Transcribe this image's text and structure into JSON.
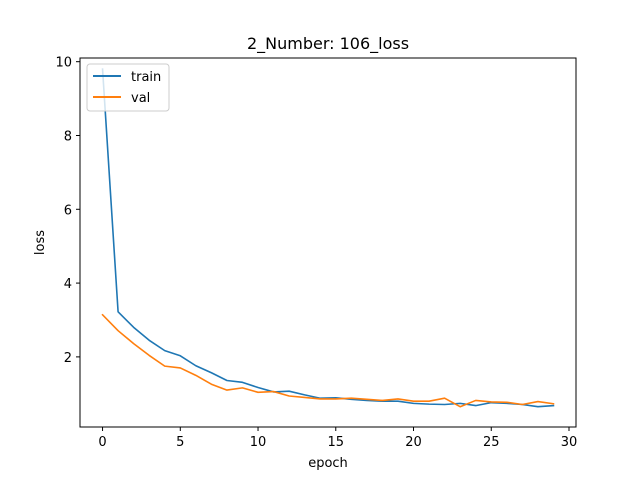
{
  "chart_data": {
    "type": "line",
    "title": "2_Number: 106_loss",
    "xlabel": "epoch",
    "ylabel": "loss",
    "xlim": [
      -1.45,
      30.45
    ],
    "ylim": [
      0.1,
      10.1
    ],
    "xticks": [
      0,
      5,
      10,
      15,
      20,
      25,
      30
    ],
    "yticks": [
      2,
      4,
      6,
      8,
      10
    ],
    "grid": false,
    "legend_position": "upper-left",
    "x": [
      0,
      1,
      2,
      3,
      4,
      5,
      6,
      7,
      8,
      9,
      10,
      11,
      12,
      13,
      14,
      15,
      16,
      17,
      18,
      19,
      20,
      21,
      22,
      23,
      24,
      25,
      26,
      27,
      28,
      29
    ],
    "series": [
      {
        "name": "train",
        "color": "#1f77b4",
        "values": [
          9.8,
          3.22,
          2.8,
          2.45,
          2.17,
          2.03,
          1.76,
          1.57,
          1.36,
          1.31,
          1.17,
          1.05,
          1.07,
          0.97,
          0.88,
          0.89,
          0.85,
          0.82,
          0.8,
          0.8,
          0.74,
          0.72,
          0.71,
          0.74,
          0.68,
          0.76,
          0.74,
          0.71,
          0.65,
          0.68
        ]
      },
      {
        "name": "val",
        "color": "#ff7f0e",
        "values": [
          3.14,
          2.71,
          2.36,
          2.04,
          1.75,
          1.7,
          1.5,
          1.26,
          1.1,
          1.16,
          1.04,
          1.06,
          0.94,
          0.9,
          0.86,
          0.86,
          0.88,
          0.85,
          0.82,
          0.86,
          0.8,
          0.8,
          0.88,
          0.65,
          0.82,
          0.78,
          0.77,
          0.71,
          0.79,
          0.73
        ]
      }
    ]
  }
}
